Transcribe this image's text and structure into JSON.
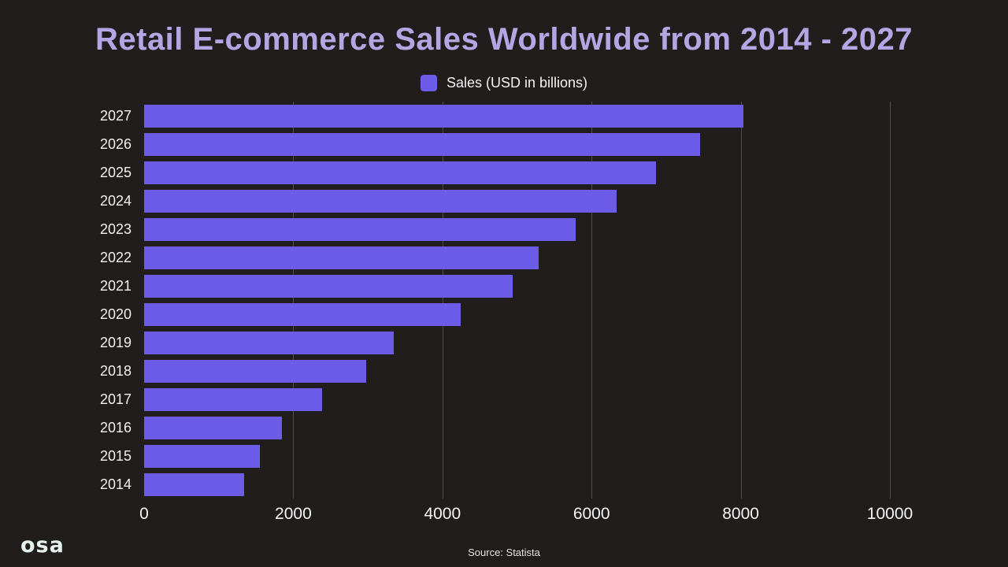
{
  "title": "Retail E-commerce Sales Worldwide from 2014 - 2027",
  "legend": {
    "label": "Sales (USD in billions)"
  },
  "source": "Source: Statista",
  "logo_text": "osa",
  "colors": {
    "background": "#211d1d",
    "bar": "#6c5ce7",
    "title": "#b4a6e3",
    "grid": "rgba(255,255,255,0.22)",
    "text": "#f2f2f2"
  },
  "chart_data": {
    "type": "bar",
    "orientation": "horizontal",
    "title": "Retail E-commerce Sales Worldwide from 2014 - 2027",
    "legend_entries": [
      "Sales (USD in billions)"
    ],
    "legend_position": "top",
    "grid": true,
    "categories": [
      "2027",
      "2026",
      "2025",
      "2024",
      "2023",
      "2022",
      "2021",
      "2020",
      "2019",
      "2018",
      "2017",
      "2016",
      "2015",
      "2014"
    ],
    "values": [
      8034,
      7458,
      6862,
      6334,
      5784,
      5289,
      4938,
      4248,
      3351,
      2982,
      2382,
      1845,
      1548,
      1336
    ],
    "xlabel": "",
    "ylabel": "",
    "xlim": [
      0,
      10000
    ],
    "xticks": [
      0,
      2000,
      4000,
      6000,
      8000,
      10000
    ]
  }
}
